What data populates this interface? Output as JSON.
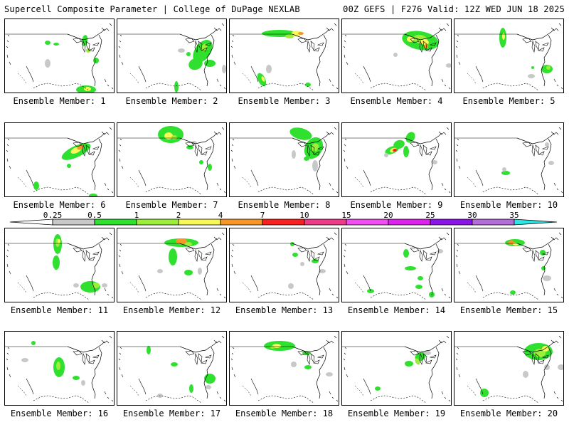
{
  "header": {
    "left": "Supercell Composite Parameter | College of DuPage NEXLAB",
    "right": "00Z GEFS | F276 Valid: 12Z WED JUN 18 2025"
  },
  "colorbar": {
    "labels": [
      "0.25",
      "0.5",
      "1",
      "2",
      "4",
      "7",
      "10",
      "15",
      "20",
      "25",
      "30",
      "35"
    ],
    "colors": [
      "#c8c8c8",
      "#2fe02f",
      "#9cee3a",
      "#f8f85a",
      "#f89628",
      "#f82020",
      "#ef3a8a",
      "#f04ef0",
      "#dd22ee",
      "#8c14e6",
      "#b46cd8",
      "#2ce6e6"
    ]
  },
  "panels": [
    {
      "label": "Ensemble Member: 1"
    },
    {
      "label": "Ensemble Member: 2"
    },
    {
      "label": "Ensemble Member: 3"
    },
    {
      "label": "Ensemble Member: 4"
    },
    {
      "label": "Ensemble Member: 5"
    },
    {
      "label": "Ensemble Member: 6"
    },
    {
      "label": "Ensemble Member: 7"
    },
    {
      "label": "Ensemble Member: 8"
    },
    {
      "label": "Ensemble Member: 9"
    },
    {
      "label": "Ensemble Member: 10"
    },
    {
      "label": "Ensemble Member: 11"
    },
    {
      "label": "Ensemble Member: 12"
    },
    {
      "label": "Ensemble Member: 13"
    },
    {
      "label": "Ensemble Member: 14"
    },
    {
      "label": "Ensemble Member: 15"
    },
    {
      "label": "Ensemble Member: 16"
    },
    {
      "label": "Ensemble Member: 17"
    },
    {
      "label": "Ensemble Member: 18"
    },
    {
      "label": "Ensemble Member: 19"
    },
    {
      "label": "Ensemble Member: 20"
    }
  ]
}
